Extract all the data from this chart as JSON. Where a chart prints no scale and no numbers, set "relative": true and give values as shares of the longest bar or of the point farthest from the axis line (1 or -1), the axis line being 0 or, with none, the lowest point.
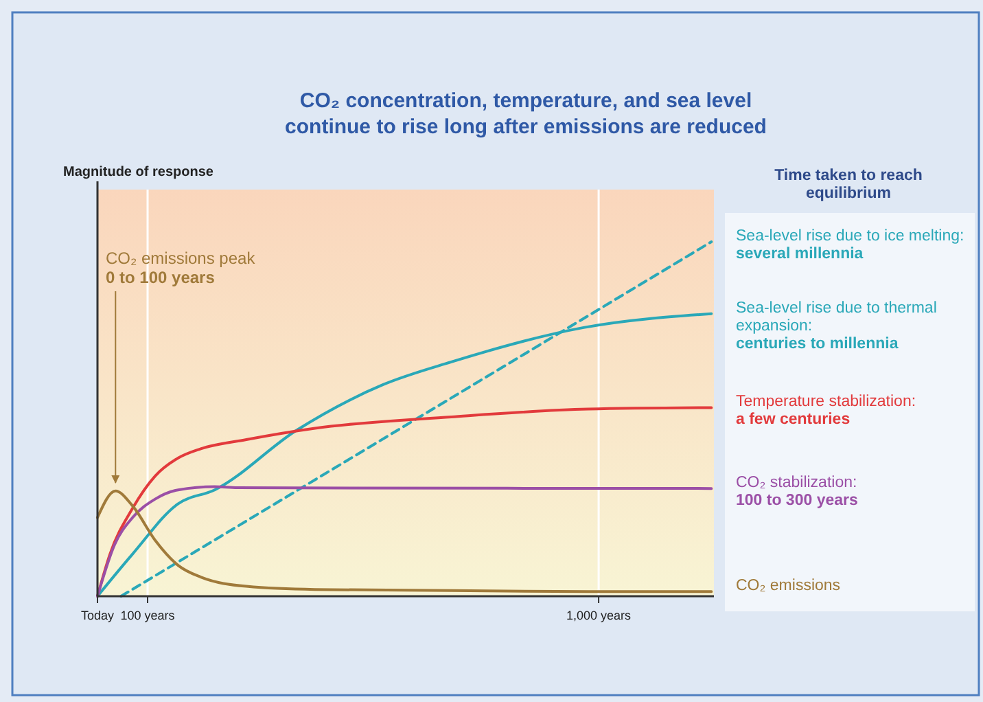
{
  "chart_data": {
    "type": "line",
    "title": "CO₂ concentration, temperature, and sea level\ncontinue to rise long after emissions are reduced",
    "ylabel": "Magnitude of response",
    "legend_title": "Time taken to reach equilibrium",
    "legend": "right",
    "relative": true,
    "grid": "x",
    "xlim": [
      0,
      1230
    ],
    "xticks": [
      {
        "value": 0,
        "label": "Today"
      },
      {
        "value": 100,
        "label": "100 years"
      },
      {
        "value": 1000,
        "label": "1,000 years"
      }
    ],
    "annotations": [
      {
        "text": "CO₂ emissions peak\n0 to 100 years",
        "x": 36,
        "y": 0.297
      }
    ],
    "series": [
      {
        "name": "Sea-level rise due to ice melting:\nseveral millennia",
        "color": "#2aa8b8",
        "line_style": "dashed",
        "x": [
          47,
          1225
        ],
        "values": [
          0,
          1.0
        ]
      },
      {
        "name": "Sea-level rise due to thermal\nexpansion:\ncenturies to millennia",
        "color": "#2aa8b8",
        "x": [
          0,
          70,
          161,
          234,
          397,
          570,
          706,
          970,
          1225
        ],
        "values": [
          0,
          0.119,
          0.261,
          0.3,
          0.468,
          0.597,
          0.661,
          0.758,
          0.797
        ]
      },
      {
        "name": "Temperature stabilization:\na few centuries",
        "color": "#e23a3c",
        "x": [
          0,
          25,
          70,
          115,
          161,
          206,
          297,
          434,
          706,
          979,
          1225
        ],
        "values": [
          0,
          0.119,
          0.248,
          0.339,
          0.39,
          0.416,
          0.442,
          0.474,
          0.506,
          0.528,
          0.532
        ]
      },
      {
        "name": "CO₂ stabilization:\n100 to 300 years",
        "color": "#9b4fa6",
        "x": [
          0,
          34,
          70,
          115,
          161,
          234,
          279,
          1225
        ],
        "values": [
          0,
          0.145,
          0.222,
          0.274,
          0.3,
          0.309,
          0.306,
          0.304
        ]
      },
      {
        "name": "CO₂ emissions",
        "color": "#a07a3a",
        "x": [
          0,
          36,
          70,
          115,
          161,
          206,
          297,
          434,
          706,
          979,
          1225
        ],
        "values": [
          0.222,
          0.297,
          0.255,
          0.158,
          0.087,
          0.054,
          0.028,
          0.019,
          0.016,
          0.013,
          0.013
        ]
      }
    ]
  }
}
